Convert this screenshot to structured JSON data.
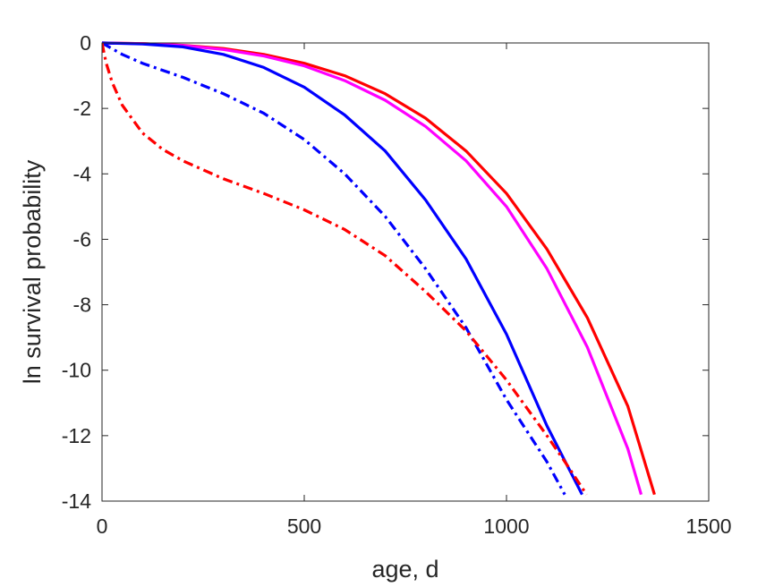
{
  "chart_data": {
    "type": "line",
    "title": "",
    "xlabel": "age, d",
    "ylabel": "ln survival probability",
    "xlim": [
      0,
      1500
    ],
    "ylim": [
      -14,
      0
    ],
    "xticks": [
      0,
      500,
      1000,
      1500
    ],
    "yticks": [
      0,
      -2,
      -4,
      -6,
      -8,
      -10,
      -12,
      -14
    ],
    "xtick_labels": [
      "0",
      "500",
      "1000",
      "1500"
    ],
    "ytick_labels": [
      "0",
      "-2",
      "-4",
      "-6",
      "-8",
      "-10",
      "-12",
      "-14"
    ],
    "grid": false,
    "legend": "none",
    "series": [
      {
        "color": "#ff0000",
        "style": "solid",
        "x": [
          0,
          100,
          200,
          300,
          400,
          500,
          600,
          700,
          800,
          900,
          1000,
          1100,
          1200,
          1300,
          1366
        ],
        "y": [
          0,
          -0.02,
          -0.07,
          -0.17,
          -0.35,
          -0.62,
          -1.0,
          -1.55,
          -2.3,
          -3.3,
          -4.6,
          -6.3,
          -8.4,
          -11.1,
          -13.8
        ]
      },
      {
        "color": "#ff00ff",
        "style": "solid",
        "x": [
          0,
          100,
          200,
          300,
          400,
          500,
          600,
          700,
          800,
          900,
          1000,
          1100,
          1200,
          1300,
          1333
        ],
        "y": [
          0,
          -0.02,
          -0.08,
          -0.2,
          -0.4,
          -0.7,
          -1.15,
          -1.75,
          -2.55,
          -3.6,
          -5.0,
          -6.9,
          -9.3,
          -12.4,
          -13.8
        ]
      },
      {
        "color": "#0000ff",
        "style": "solid",
        "x": [
          0,
          100,
          200,
          300,
          400,
          500,
          600,
          700,
          800,
          900,
          1000,
          1100,
          1187
        ],
        "y": [
          0,
          -0.03,
          -0.12,
          -0.35,
          -0.75,
          -1.35,
          -2.2,
          -3.3,
          -4.8,
          -6.6,
          -8.9,
          -11.7,
          -13.8
        ]
      },
      {
        "color": "#0000ff",
        "style": "dashdot",
        "x": [
          0,
          50,
          100,
          200,
          300,
          400,
          500,
          600,
          700,
          800,
          900,
          1000,
          1100,
          1144
        ],
        "y": [
          0,
          -0.35,
          -0.62,
          -1.05,
          -1.55,
          -2.15,
          -2.95,
          -4.0,
          -5.3,
          -6.9,
          -8.7,
          -10.9,
          -12.8,
          -13.8
        ]
      },
      {
        "color": "#ff0000",
        "style": "dashdot",
        "x": [
          0,
          10,
          25,
          50,
          100,
          150,
          200,
          300,
          400,
          500,
          600,
          700,
          800,
          900,
          1000,
          1100,
          1150,
          1198
        ],
        "y": [
          0,
          -0.6,
          -1.2,
          -1.9,
          -2.75,
          -3.25,
          -3.6,
          -4.15,
          -4.6,
          -5.1,
          -5.7,
          -6.5,
          -7.6,
          -8.8,
          -10.3,
          -12.0,
          -12.9,
          -13.8
        ]
      }
    ]
  }
}
